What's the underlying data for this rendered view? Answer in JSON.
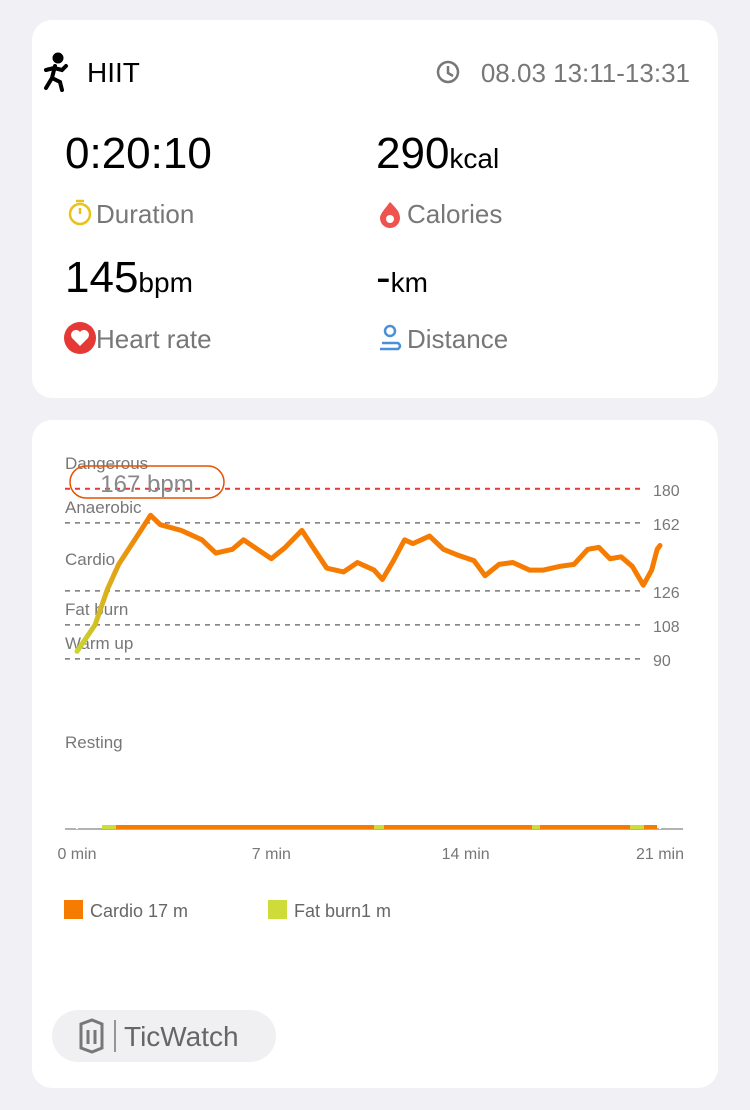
{
  "header": {
    "activity": "HIIT",
    "time": "08.03 13:11-13:31"
  },
  "stats": {
    "duration": {
      "value": "0:20:10",
      "label": "Duration"
    },
    "calories": {
      "value": "290",
      "unit": "kcal",
      "label": "Calories"
    },
    "heart_rate": {
      "value": "145",
      "unit": "bpm",
      "label": "Heart rate"
    },
    "distance": {
      "value": "-",
      "unit": "km",
      "label": "Distance"
    }
  },
  "chart_data": {
    "type": "line",
    "max_label": "167 bpm",
    "zones": [
      "Dangerous",
      "Anaerobic",
      "Cardio",
      "Fat burn",
      "Warm up",
      "Resting"
    ],
    "x": [
      0,
      0.65,
      1.1,
      1.5,
      1.9,
      2.3,
      2.65,
      3.0,
      3.75,
      4.5,
      5.0,
      5.6,
      6.0,
      6.5,
      7.0,
      7.5,
      8.1,
      8.5,
      9.0,
      9.6,
      10.1,
      10.7,
      11.0,
      11.4,
      11.8,
      12.1,
      12.7,
      13.2,
      13.7,
      14.3,
      14.7,
      15.2,
      15.7,
      16.3,
      16.8,
      17.4,
      17.9,
      18.4,
      18.8,
      19.2,
      19.6,
      20.0,
      20.4,
      20.7,
      20.9,
      21.0
    ],
    "series": [
      {
        "colors": [
          "#c8d631",
          "#f57c00"
        ],
        "values": [
          94,
          108,
          127,
          140,
          149,
          158,
          166,
          161,
          158,
          153,
          146,
          148,
          153,
          148,
          143,
          149,
          158,
          149,
          138,
          136,
          141,
          137,
          132,
          142,
          153,
          151,
          155,
          148,
          145,
          142,
          134,
          140,
          141,
          137,
          137,
          139,
          140,
          148,
          149,
          143,
          144,
          139,
          129,
          137,
          148,
          150
        ]
      }
    ],
    "xlim": [
      0,
      21
    ],
    "ylim": [
      0,
      200
    ],
    "xticks": [
      {
        "value": 0,
        "label": "0 min"
      },
      {
        "value": 7,
        "label": "7 min"
      },
      {
        "value": 14,
        "label": "14 min"
      },
      {
        "value": 21,
        "label": "21 min"
      }
    ],
    "yticks": [
      90,
      108,
      126,
      162,
      180
    ],
    "legend": [
      {
        "name": "Cardio 17 m",
        "color": "#f57c00"
      },
      {
        "name": "Fat burn1 m",
        "color": "#cddc39"
      }
    ]
  },
  "footer": {
    "brand": "TicWatch"
  }
}
